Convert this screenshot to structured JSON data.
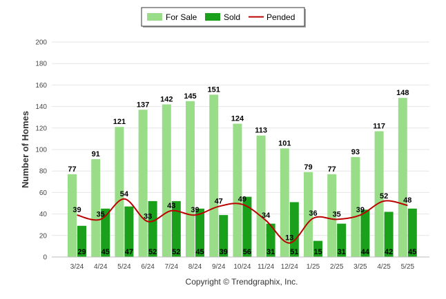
{
  "chart_data": {
    "type": "bar",
    "title": "",
    "xlabel": "",
    "ylabel": "Number of Homes",
    "ylim": [
      0,
      200
    ],
    "yticks": [
      0,
      20,
      40,
      60,
      80,
      100,
      120,
      140,
      160,
      180,
      200
    ],
    "grid": true,
    "legend_position": "top-center",
    "categories": [
      "3/24",
      "4/24",
      "5/24",
      "6/24",
      "7/24",
      "8/24",
      "9/24",
      "10/24",
      "11/24",
      "12/24",
      "1/25",
      "2/25",
      "3/25",
      "4/25",
      "5/25"
    ],
    "series": [
      {
        "name": "For Sale",
        "kind": "bar",
        "color": "#99dd88",
        "values": [
          77,
          91,
          121,
          137,
          142,
          145,
          151,
          124,
          113,
          101,
          79,
          77,
          93,
          117,
          148
        ]
      },
      {
        "name": "Sold",
        "kind": "bar",
        "color": "#1aa01a",
        "values": [
          29,
          45,
          47,
          52,
          52,
          45,
          39,
          56,
          31,
          51,
          15,
          31,
          44,
          42,
          45
        ]
      },
      {
        "name": "Pended",
        "kind": "line",
        "color": "#bb0000",
        "values": [
          39,
          35,
          54,
          33,
          43,
          39,
          47,
          49,
          34,
          13,
          36,
          35,
          39,
          52,
          48
        ]
      }
    ],
    "copyright": "Copyright © Trendgraphix, Inc."
  }
}
